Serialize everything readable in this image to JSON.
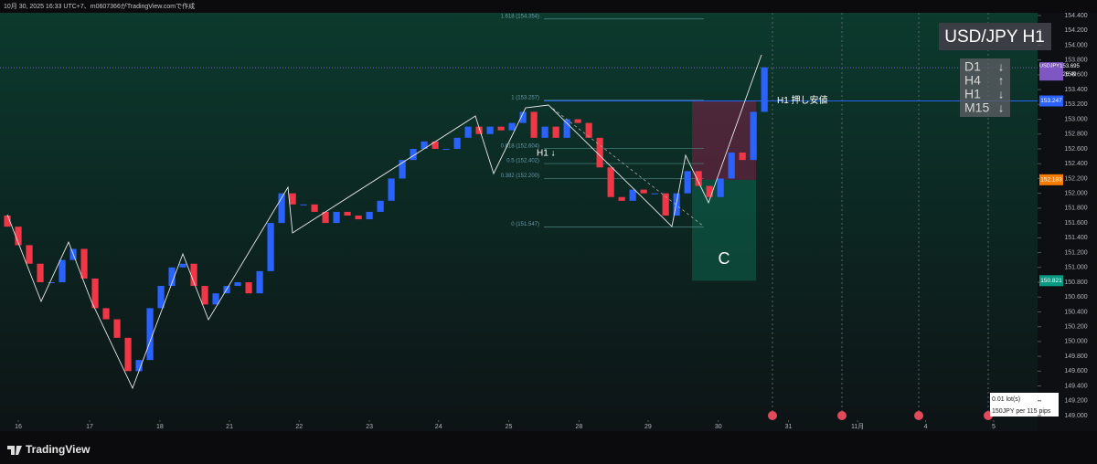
{
  "header": {
    "caption": "10月 30, 2025 16:33 UTC+7、m0607366がTradingView.comで作成"
  },
  "chart_data": {
    "type": "candlestick",
    "title": "USD/JPY H1",
    "open": [
      151.7,
      151.55,
      151.3,
      151.05,
      150.8,
      150.8,
      151.1,
      151.25,
      150.85,
      150.45,
      150.3,
      150.05,
      149.6,
      149.75,
      150.45,
      150.75,
      151.0,
      151.05,
      150.75,
      150.5,
      150.65,
      150.75,
      150.8,
      150.65,
      150.95,
      151.6,
      152.0,
      151.85,
      151.85,
      151.75,
      151.6,
      151.75,
      151.7,
      151.65,
      151.75,
      151.9,
      152.2,
      152.45,
      152.6,
      152.7,
      152.6,
      152.6,
      152.75,
      152.9,
      152.8,
      152.9,
      152.85,
      152.95,
      153.1,
      152.75,
      152.9,
      152.75,
      153.0,
      152.95,
      152.75,
      152.35,
      151.95,
      151.9,
      152.05,
      152.0,
      152.0,
      151.7,
      152.0,
      152.3,
      152.1,
      151.95,
      152.2,
      152.55,
      152.45,
      153.1
    ],
    "close": [
      151.55,
      151.3,
      151.05,
      150.8,
      150.8,
      151.1,
      151.25,
      150.85,
      150.45,
      150.3,
      150.05,
      149.6,
      149.75,
      150.45,
      150.75,
      151.0,
      151.05,
      150.75,
      150.5,
      150.65,
      150.75,
      150.8,
      150.65,
      150.95,
      151.6,
      152.0,
      151.85,
      151.85,
      151.75,
      151.6,
      151.75,
      151.7,
      151.65,
      151.75,
      151.9,
      152.2,
      152.45,
      152.6,
      152.7,
      152.6,
      152.6,
      152.75,
      152.9,
      152.8,
      152.9,
      152.85,
      152.95,
      153.1,
      152.75,
      152.9,
      152.75,
      153.0,
      152.95,
      152.75,
      152.35,
      151.95,
      151.9,
      152.05,
      152.0,
      152.0,
      151.7,
      152.0,
      152.3,
      152.1,
      151.95,
      152.2,
      152.55,
      152.45,
      153.1,
      153.7
    ],
    "up_color": "#2962ff",
    "down_color": "#f23645",
    "xlim": [
      -0.67,
      93.9
    ],
    "xticks": [
      {
        "value": 1,
        "label": "16"
      },
      {
        "value": 7.5,
        "label": "17"
      },
      {
        "value": 13.9,
        "label": "18"
      },
      {
        "value": 20.25,
        "label": "21"
      },
      {
        "value": 26.6,
        "label": "22"
      },
      {
        "value": 33,
        "label": "23"
      },
      {
        "value": 39.3,
        "label": "24"
      },
      {
        "value": 45.7,
        "label": "25"
      },
      {
        "value": 52.1,
        "label": "28"
      },
      {
        "value": 58.4,
        "label": "29"
      },
      {
        "value": 64.8,
        "label": "30"
      },
      {
        "value": 71.2,
        "label": "31"
      },
      {
        "value": 77.5,
        "label": "11月"
      },
      {
        "value": 83.7,
        "label": "4"
      },
      {
        "value": 89.9,
        "label": "5"
      }
    ],
    "ylim": [
      149,
      154.4
    ],
    "yticks": [
      {
        "value": 149,
        "label": "149.000"
      },
      {
        "value": 149.2,
        "label": "149.200"
      },
      {
        "value": 149.4,
        "label": "149.400"
      },
      {
        "value": 149.6,
        "label": "149.600"
      },
      {
        "value": 149.8,
        "label": "149.800"
      },
      {
        "value": 150,
        "label": "150.000"
      },
      {
        "value": 150.2,
        "label": "150.200"
      },
      {
        "value": 150.4,
        "label": "150.400"
      },
      {
        "value": 150.6,
        "label": "150.600"
      },
      {
        "value": 150.8,
        "label": "150.800"
      },
      {
        "value": 151,
        "label": "151.000"
      },
      {
        "value": 151.2,
        "label": "151.200"
      },
      {
        "value": 151.4,
        "label": "151.400"
      },
      {
        "value": 151.6,
        "label": "151.600"
      },
      {
        "value": 151.8,
        "label": "151.800"
      },
      {
        "value": 152,
        "label": "152.000"
      },
      {
        "value": 152.2,
        "label": "152.200"
      },
      {
        "value": 152.4,
        "label": "152.400"
      },
      {
        "value": 152.6,
        "label": "152.600"
      },
      {
        "value": 152.8,
        "label": "152.800"
      },
      {
        "value": 153,
        "label": "153.000"
      },
      {
        "value": 153.2,
        "label": "153.200"
      },
      {
        "value": 153.4,
        "label": "153.400"
      },
      {
        "value": 153.6,
        "label": "153.600"
      },
      {
        "value": 153.8,
        "label": "153.800"
      },
      {
        "value": 154,
        "label": "154.000"
      },
      {
        "value": 154.2,
        "label": "154.200"
      },
      {
        "value": 154.4,
        "label": "154.400"
      }
    ],
    "last_price": {
      "value": 153.695,
      "label": "153.695",
      "symbol": "USDJPY",
      "countdown": "26:49"
    },
    "levels": [
      {
        "value": 153.247,
        "label": "153.247",
        "color": "#2962ff"
      },
      {
        "value": 152.183,
        "label": "152.183",
        "color": "#f57c00"
      },
      {
        "value": 150.821,
        "label": "150.821",
        "color": "#089981"
      }
    ],
    "fib": [
      {
        "value": 154.354,
        "label": "1.618 (154.354)"
      },
      {
        "value": 153.257,
        "label": "1 (153.257)"
      },
      {
        "value": 152.604,
        "label": "0.618 (152.604)"
      },
      {
        "value": 152.402,
        "label": "0.5 (152.402)"
      },
      {
        "value": 152.2,
        "label": "0.382 (152.200)"
      },
      {
        "value": 151.547,
        "label": "0 (151.547)"
      }
    ],
    "annotations": {
      "support": "H1 押し安値",
      "signal": "H1 ↓",
      "zone": "C"
    },
    "timeframes": [
      {
        "name": "D1",
        "arrow": "↓"
      },
      {
        "name": "H4",
        "arrow": "↑"
      },
      {
        "name": "H1",
        "arrow": "↓"
      },
      {
        "name": "M15",
        "arrow": "↓"
      }
    ],
    "position": {
      "size": "0.01 lot(s)",
      "risk": "150JPY per 115 pips"
    }
  },
  "footer": {
    "brand": "TradingView"
  }
}
